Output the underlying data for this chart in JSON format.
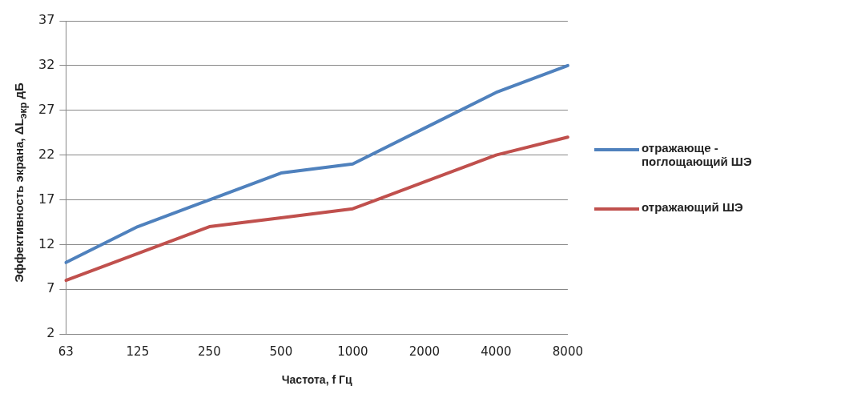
{
  "chart_data": {
    "type": "line",
    "xlabel": "Частота, f Гц",
    "ylabel": "Эффективность экрана, ΔL$_{экр}$ дБ",
    "categories": [
      "63",
      "125",
      "250",
      "500",
      "1000",
      "2000",
      "4000",
      "8000"
    ],
    "series": [
      {
        "name": "отражающе - поглощающий ШЭ",
        "color": "#4f81bd",
        "values": [
          10,
          14,
          17,
          20,
          21,
          25,
          29,
          32
        ]
      },
      {
        "name": "отражающий ШЭ",
        "color": "#c0504d",
        "values": [
          8,
          11,
          14,
          15,
          16,
          19,
          22,
          24
        ]
      }
    ],
    "ylim": [
      2,
      37
    ],
    "yticks": [
      2,
      7,
      12,
      17,
      22,
      27,
      32,
      37
    ],
    "grid": "y",
    "legend": "right",
    "marker": "none"
  }
}
